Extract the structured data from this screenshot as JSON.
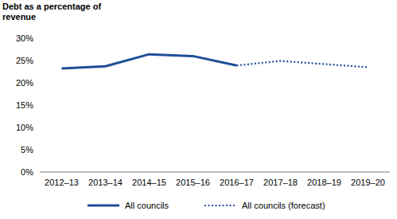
{
  "chart_data": {
    "type": "line",
    "ylabel": "Debt as a percentage of revenue",
    "categories": [
      "2012–13",
      "2013–14",
      "2014–15",
      "2015–16",
      "2016–17",
      "2017–18",
      "2018–19",
      "2019–20"
    ],
    "series": [
      {
        "name": "All councils",
        "color": "#1f4e99",
        "line_style": "solid",
        "values": [
          23.2,
          23.7,
          26.4,
          26.0,
          23.9,
          null,
          null,
          null
        ]
      },
      {
        "name": "All councils (forecast)",
        "color": "#1f4e99",
        "line_style": "dotted",
        "values": [
          null,
          null,
          null,
          null,
          23.9,
          24.9,
          24.2,
          23.5
        ]
      }
    ],
    "ylim": [
      0,
      30
    ],
    "yticks": [
      {
        "value": 0,
        "label": "0%"
      },
      {
        "value": 5,
        "label": "5%"
      },
      {
        "value": 10,
        "label": "10%"
      },
      {
        "value": 15,
        "label": "15%"
      },
      {
        "value": 20,
        "label": "20%"
      },
      {
        "value": 25,
        "label": "25%"
      },
      {
        "value": 30,
        "label": "30%"
      }
    ],
    "grid": false,
    "legend": "bottom"
  }
}
